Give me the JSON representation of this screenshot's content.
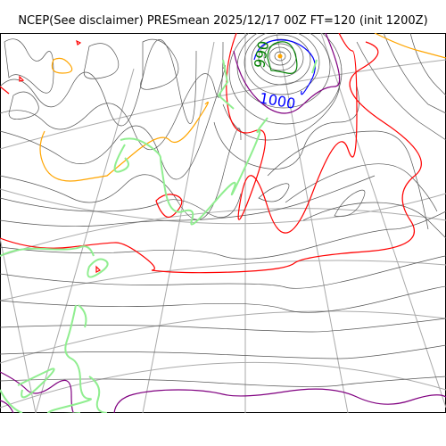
{
  "title": "NCEP(See disclaimer) PRESmean 2025/12/17 00Z FT=120 (init 1200Z)",
  "isobar_labels": [
    {
      "text": "1000",
      "color": "#0000ff"
    },
    {
      "text": "990",
      "color": "#008000"
    }
  ],
  "colors": {
    "isobar": "#555555",
    "graticule": "#aaaaaa",
    "land_outline": "#90ee90",
    "red_contour": "#ff0000",
    "orange_contour": "#ffa500",
    "purple_contour": "#800080",
    "blue_contour": "#0000ff",
    "green_contour": "#008000"
  }
}
